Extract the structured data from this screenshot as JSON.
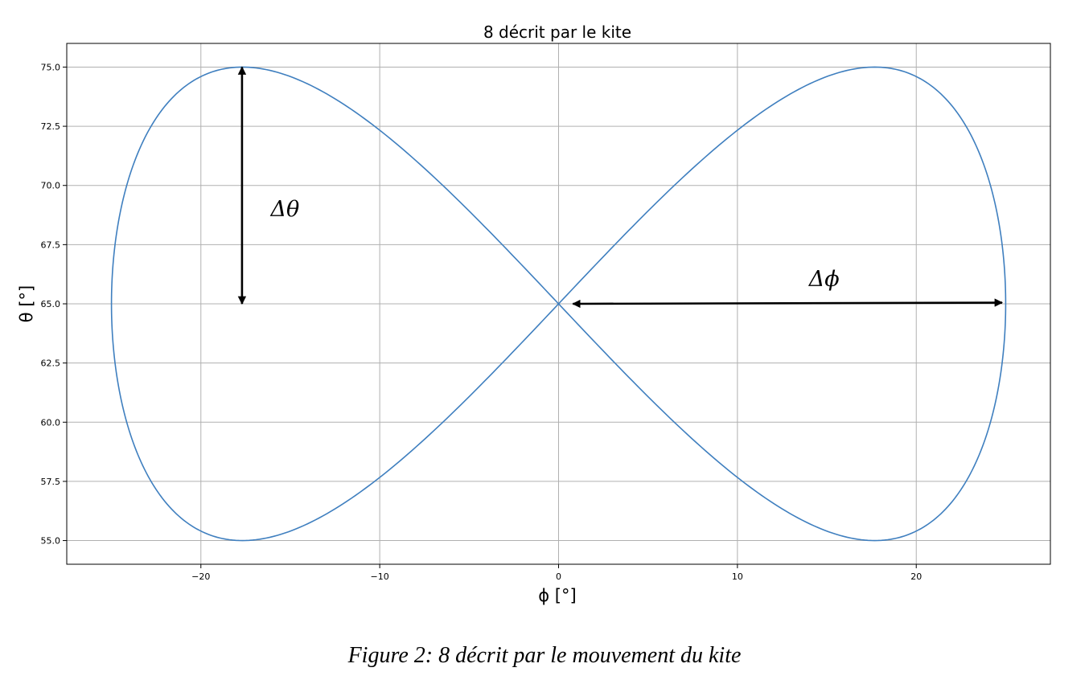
{
  "chart_data": {
    "type": "line",
    "title": "8 décrit par le kite",
    "xlabel": "ϕ [°]",
    "ylabel": "θ [°]",
    "xlim": [
      -27.5,
      27.5
    ],
    "ylim": [
      54.0,
      76.0
    ],
    "xticks": [
      -20,
      -10,
      0,
      10,
      20
    ],
    "xtick_labels": [
      "−20",
      "−10",
      "0",
      "10",
      "20"
    ],
    "yticks": [
      55.0,
      57.5,
      60.0,
      62.5,
      65.0,
      67.5,
      70.0,
      72.5,
      75.0
    ],
    "ytick_labels": [
      "55.0",
      "57.5",
      "60.0",
      "62.5",
      "65.0",
      "67.5",
      "70.0",
      "72.5",
      "75.0"
    ],
    "grid": true,
    "series": [
      {
        "curve": "figure-eight",
        "phi_amplitude": 25,
        "theta_center": 65,
        "theta_amplitude": 10,
        "color": "#3f7fbf"
      }
    ],
    "annotations": [
      {
        "label": "Δθ",
        "arrow": {
          "x1": -17.7,
          "y1": 75.0,
          "x2": -17.7,
          "y2": 65.0
        },
        "text_at": {
          "x": -16.1,
          "y": 68.7
        }
      },
      {
        "label": "Δϕ",
        "arrow": {
          "x1": 0.8,
          "y1": 65.0,
          "x2": 24.8,
          "y2": 65.05
        },
        "text_at": {
          "x": 14.0,
          "y": 65.75
        }
      }
    ]
  },
  "caption": "Figure 2: 8 décrit par le mouvement du kite"
}
